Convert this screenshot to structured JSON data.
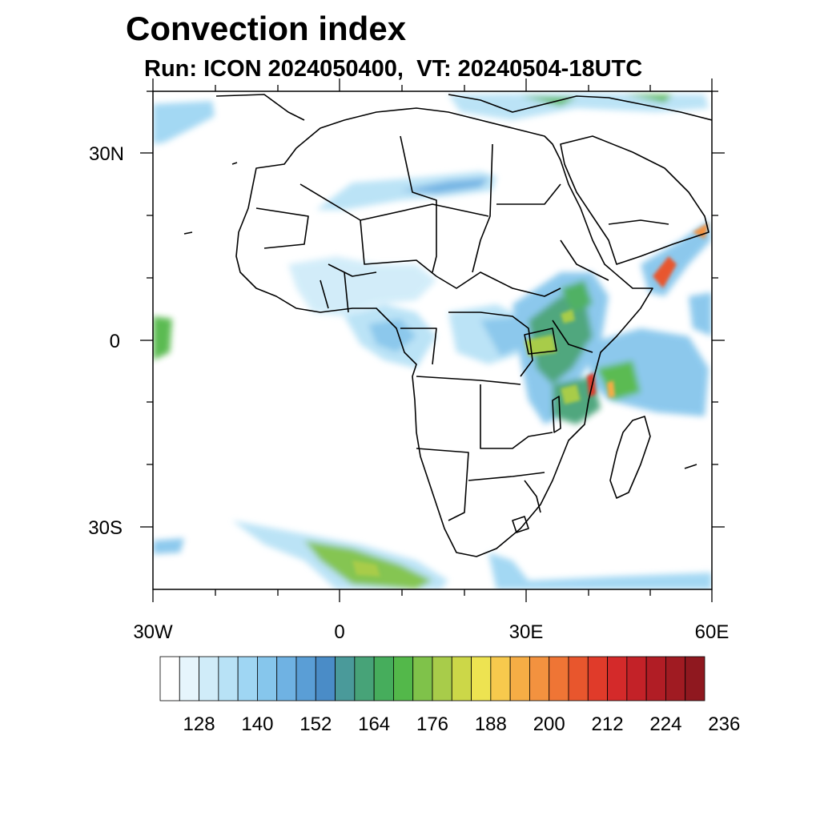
{
  "title": "Convection index",
  "subtitle": "Run: ICON 2024050400,  VT: 20240504-18UTC",
  "map": {
    "lon_range": [
      -30,
      60
    ],
    "lat_range": [
      -40,
      40
    ],
    "lat_labels": [
      "30N",
      "0",
      "30S"
    ],
    "lon_labels": [
      "30W",
      "0",
      "30E",
      "60E"
    ],
    "coastline_color": "#000000",
    "background_color": "#ffffff"
  },
  "colorbar": {
    "labels": [
      "128",
      "140",
      "152",
      "164",
      "176",
      "188",
      "200",
      "212",
      "224",
      "236"
    ],
    "colors": [
      "#ffffff",
      "#e6f5fc",
      "#d0ecf9",
      "#b8e2f6",
      "#9fd6f3",
      "#86c6ec",
      "#6fb2e3",
      "#5a9ed6",
      "#4a8cc7",
      "#4a9a9a",
      "#47a378",
      "#46ad5c",
      "#53b84a",
      "#7fc24a",
      "#a8cc4a",
      "#ccd748",
      "#ede351",
      "#f7c94d",
      "#f6ad45",
      "#f3923f",
      "#ef7535",
      "#e8562d",
      "#e03b2a",
      "#d42a2a",
      "#c32228",
      "#b11d25",
      "#a01b22",
      "#8f181f"
    ]
  }
}
